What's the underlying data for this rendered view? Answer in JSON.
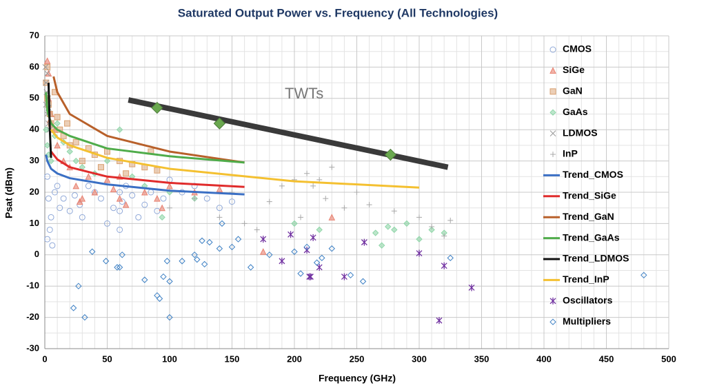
{
  "chart_data": {
    "type": "scatter",
    "title": "Saturated Output Power vs. Frequency (All Technologies)",
    "x_label": "Frequency (GHz)",
    "y_label": "Psat (dBm)",
    "xlim": [
      0,
      500
    ],
    "ylim": [
      -30,
      70
    ],
    "xticks": [
      0,
      50,
      100,
      150,
      200,
      250,
      300,
      350,
      400,
      450,
      500
    ],
    "yticks": [
      -30,
      -20,
      -10,
      0,
      10,
      20,
      30,
      40,
      50,
      60,
      70
    ],
    "xminorticks": [
      10,
      20,
      30,
      40,
      60,
      70,
      80,
      90,
      110,
      120,
      130,
      140,
      160,
      170,
      180,
      190,
      210,
      220,
      230,
      240,
      260,
      270,
      280,
      290,
      310,
      320,
      330,
      340,
      360,
      370,
      380,
      390,
      410,
      420,
      430,
      440,
      460,
      470,
      480,
      490
    ],
    "yminorticks": [
      -25,
      -15,
      -5,
      5,
      15,
      25,
      35,
      45,
      55,
      65
    ],
    "grid": true,
    "legend": "right",
    "series": [
      {
        "name": "CMOS",
        "kind": "scatter",
        "marker": "circle",
        "color": "#8fa8d8",
        "x": [
          2,
          3,
          5,
          8,
          10,
          12,
          15,
          20,
          24,
          28,
          30,
          35,
          40,
          45,
          50,
          55,
          60,
          60,
          60,
          62,
          65,
          70,
          75,
          80,
          85,
          90,
          95,
          100,
          110,
          120,
          130,
          140,
          150,
          2,
          4,
          6
        ],
        "values": [
          25,
          18,
          12,
          20,
          22,
          15,
          18,
          14,
          19,
          16,
          12,
          22,
          20,
          18,
          10,
          15,
          20,
          14,
          8,
          17,
          22,
          19,
          12,
          16,
          20,
          14,
          18,
          24,
          20,
          22,
          18,
          15,
          17,
          5,
          8,
          3
        ]
      },
      {
        "name": "SiGe",
        "kind": "scatter",
        "marker": "triangle",
        "color": "#e8806f",
        "x": [
          2,
          3,
          5,
          8,
          10,
          15,
          20,
          25,
          28,
          30,
          35,
          40,
          50,
          55,
          60,
          60,
          65,
          80,
          90,
          94,
          100,
          120,
          140,
          175,
          230,
          3,
          4
        ],
        "values": [
          62,
          58,
          45,
          40,
          35,
          30,
          28,
          22,
          17,
          18,
          25,
          20,
          24,
          21,
          25,
          18,
          16,
          20,
          18,
          15,
          22,
          20,
          21,
          1,
          12,
          50,
          43
        ]
      },
      {
        "name": "GaN",
        "kind": "scatter",
        "marker": "square",
        "color": "#d9a070",
        "x": [
          1,
          2,
          2,
          3,
          4,
          5,
          6,
          8,
          10,
          12,
          15,
          18,
          20,
          25,
          30,
          35,
          40,
          45,
          50,
          60,
          65,
          70,
          80,
          85,
          90
        ],
        "values": [
          55,
          60,
          50,
          48,
          45,
          42,
          40,
          52,
          44,
          40,
          38,
          42,
          35,
          36,
          30,
          34,
          32,
          28,
          33,
          30,
          26,
          29,
          28,
          33,
          27
        ]
      },
      {
        "name": "GaAs",
        "kind": "scatter",
        "marker": "diamond",
        "color": "#8fd6a8",
        "x": [
          1,
          2,
          3,
          5,
          8,
          10,
          15,
          20,
          25,
          30,
          40,
          50,
          60,
          70,
          80,
          94,
          100,
          120,
          200,
          220,
          265,
          270,
          275,
          280,
          290,
          300,
          310,
          320
        ],
        "values": [
          40,
          35,
          32,
          30,
          38,
          42,
          36,
          33,
          30,
          28,
          26,
          30,
          40,
          25,
          22,
          12,
          20,
          18,
          10,
          8,
          7,
          3,
          9,
          8,
          10,
          5,
          8,
          7
        ]
      },
      {
        "name": "LDMOS",
        "kind": "scatter",
        "marker": "x",
        "color": "#9a9a9a",
        "x": [
          0.5,
          1,
          1,
          1.5,
          2,
          2,
          2.5,
          3,
          3,
          4
        ],
        "values": [
          60,
          55,
          48,
          52,
          45,
          58,
          50,
          42,
          47,
          40
        ]
      },
      {
        "name": "InP",
        "kind": "scatter",
        "marker": "plus",
        "color": "#a8a8a8",
        "x": [
          100,
          120,
          140,
          150,
          160,
          170,
          180,
          190,
          200,
          205,
          210,
          215,
          220,
          225,
          230,
          240,
          250,
          260,
          280,
          300,
          310,
          320,
          325
        ],
        "values": [
          15,
          18,
          12,
          20,
          10,
          8,
          17,
          22,
          24,
          12,
          26,
          22,
          24,
          18,
          28,
          15,
          20,
          16,
          14,
          12,
          9,
          6,
          11
        ]
      },
      {
        "name": "Trend_CMOS",
        "kind": "line",
        "color": "#3a6fc4",
        "x": [
          1,
          2,
          5,
          10,
          20,
          50,
          100,
          160
        ],
        "values": [
          32,
          30,
          27.5,
          26,
          24.5,
          22.5,
          20.5,
          19.3
        ]
      },
      {
        "name": "Trend_SiGe",
        "kind": "line",
        "color": "#e02b2b",
        "x": [
          5,
          10,
          20,
          50,
          100,
          160
        ],
        "values": [
          33,
          30.5,
          28,
          25,
          23,
          21.7
        ]
      },
      {
        "name": "Trend_GaN",
        "kind": "line",
        "color": "#b8602a",
        "x": [
          7,
          10,
          20,
          50,
          100,
          160
        ],
        "values": [
          57,
          52,
          45,
          38,
          33,
          29.5
        ]
      },
      {
        "name": "Trend_GaAs",
        "kind": "line",
        "color": "#4fac4a",
        "x": [
          1,
          2,
          5,
          10,
          20,
          50,
          100,
          160
        ],
        "values": [
          52,
          46,
          42,
          40,
          38,
          34,
          31.5,
          29.5
        ]
      },
      {
        "name": "Trend_LDMOS",
        "kind": "line",
        "color": "#111111",
        "x": [
          3,
          4,
          5
        ],
        "values": [
          55,
          40,
          31
        ]
      },
      {
        "name": "Trend_InP",
        "kind": "line",
        "color": "#f4c030",
        "x": [
          5,
          10,
          20,
          50,
          100,
          200,
          300
        ],
        "values": [
          40,
          37.5,
          35,
          31,
          27.5,
          23.5,
          21.5
        ]
      },
      {
        "name": "Oscillators",
        "kind": "scatter",
        "marker": "asterisk",
        "color": "#7030a0",
        "x": [
          175,
          190,
          197,
          210,
          212,
          213,
          215,
          220,
          240,
          256,
          300,
          316,
          320,
          342
        ],
        "values": [
          5,
          -2,
          6.5,
          1.5,
          -7,
          -7,
          5.5,
          -4,
          -7,
          4,
          0.5,
          -21,
          -3.5,
          -10.5
        ]
      },
      {
        "name": "Multipliers",
        "kind": "scatter",
        "marker": "diamond-open",
        "color": "#3b7fc4",
        "x": [
          23,
          27,
          32,
          38,
          49,
          58,
          60,
          62,
          80,
          90,
          92,
          95,
          98,
          100,
          100,
          110,
          120,
          122,
          126,
          128,
          132,
          140,
          142,
          150,
          155,
          165,
          180,
          200,
          205,
          210,
          218,
          222,
          230,
          245,
          255,
          325,
          480
        ],
        "values": [
          -17,
          -10,
          -20,
          1,
          -2,
          -4,
          -4,
          0,
          -8,
          -13,
          -14,
          -7,
          -2,
          -20,
          -8.5,
          -2,
          0,
          -1.5,
          4.5,
          -3,
          4,
          2,
          10,
          2.5,
          5,
          -4,
          0,
          1,
          -6,
          2.5,
          -2.5,
          -1,
          2,
          -6.5,
          -8.5,
          -1,
          -6.5
        ]
      }
    ],
    "twt": {
      "label": "TWTs",
      "color": "#3a3a3a",
      "marker_color": "#6aa84f",
      "x": [
        67,
        323
      ],
      "values": [
        49.5,
        28
      ],
      "marker_x": [
        90,
        140,
        277
      ],
      "marker_values": [
        47,
        42,
        32
      ]
    }
  }
}
